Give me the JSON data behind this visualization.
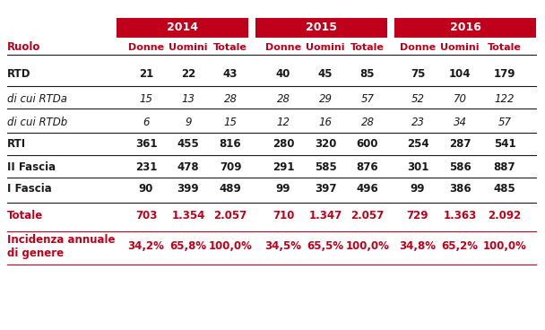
{
  "title": "",
  "header_year_labels": [
    "2014",
    "2015",
    "2016"
  ],
  "header_sub_labels": [
    "Donne",
    "Uomini",
    "Totale"
  ],
  "col0_header": "Ruolo",
  "rows": [
    {
      "label": "RTD",
      "bold": true,
      "italic": false,
      "indent": false,
      "values": [
        "21",
        "22",
        "43",
        "40",
        "45",
        "85",
        "75",
        "104",
        "179"
      ]
    },
    {
      "label": "di cui RTDa",
      "bold": false,
      "italic": true,
      "indent": true,
      "values": [
        "15",
        "13",
        "28",
        "28",
        "29",
        "57",
        "52",
        "70",
        "122"
      ]
    },
    {
      "label": "di cui RTDb",
      "bold": false,
      "italic": true,
      "indent": true,
      "values": [
        "6",
        "9",
        "15",
        "12",
        "16",
        "28",
        "23",
        "34",
        "57"
      ]
    },
    {
      "label": "RTI",
      "bold": true,
      "italic": false,
      "indent": false,
      "values": [
        "361",
        "455",
        "816",
        "280",
        "320",
        "600",
        "254",
        "287",
        "541"
      ]
    },
    {
      "label": "II Fascia",
      "bold": true,
      "italic": false,
      "indent": false,
      "values": [
        "231",
        "478",
        "709",
        "291",
        "585",
        "876",
        "301",
        "586",
        "887"
      ]
    },
    {
      "label": "I Fascia",
      "bold": true,
      "italic": false,
      "indent": false,
      "values": [
        "90",
        "399",
        "489",
        "99",
        "397",
        "496",
        "99",
        "386",
        "485"
      ]
    },
    {
      "label": "Totale",
      "bold": true,
      "italic": false,
      "indent": false,
      "red": true,
      "values": [
        "703",
        "1.354",
        "2.057",
        "710",
        "1.347",
        "2.057",
        "729",
        "1.363",
        "2.092"
      ]
    },
    {
      "label": "Incidenza annuale\ndi genere",
      "bold": true,
      "italic": false,
      "indent": false,
      "red": true,
      "values": [
        "34,2%",
        "65,8%",
        "100,0%",
        "34,5%",
        "65,5%",
        "100,0%",
        "34,8%",
        "65,2%",
        "100,0%"
      ]
    }
  ],
  "red_color": "#C0001A",
  "black_color": "#1a1a1a",
  "header_bg_color": "#C0001A",
  "header_text_color": "#ffffff",
  "subheader_text_color": "#C0001A",
  "bg_color": "#ffffff",
  "line_color": "#555555",
  "red_line_color": "#C0001A"
}
